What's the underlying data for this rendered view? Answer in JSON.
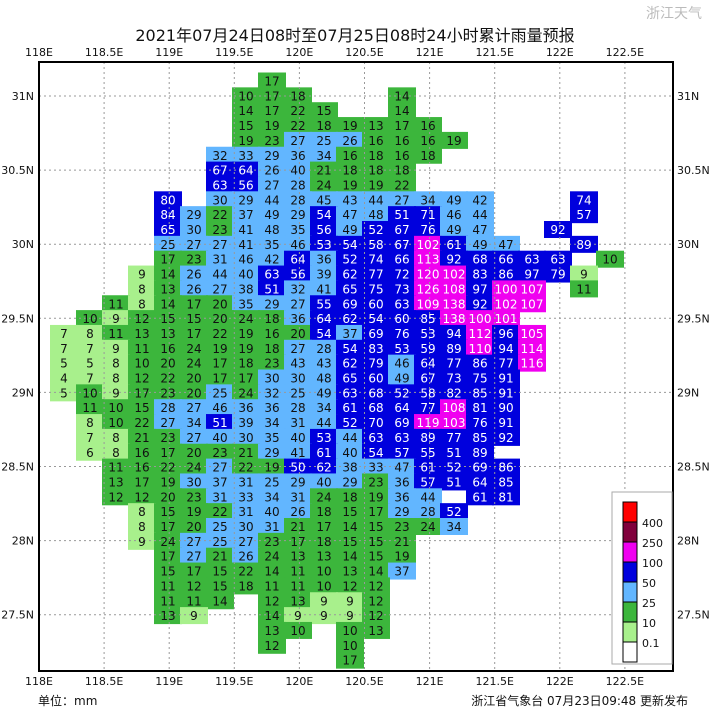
{
  "title": "2021年07月24日08时至07月25日08时24小时累计雨量预报",
  "lon_labels": [
    "118E",
    "118.5E",
    "119E",
    "119.5E",
    "120E",
    "120.5E",
    "121E",
    "121.5E",
    "122E",
    "122.5E"
  ],
  "lat_labels": [
    "31N",
    "30.5N",
    "30N",
    "29.5N",
    "29N",
    "28.5N",
    "28N",
    "27.5N"
  ],
  "unit_label": "单位：mm",
  "issuer": "浙江省气象台 07月23日09:48 更新发布",
  "watermark": "浙江天气",
  "legend": {
    "labels": [
      "400",
      "250",
      "100",
      "50",
      "25",
      "10",
      "0.1"
    ],
    "colors": [
      "#ff0000",
      "#80003c",
      "#f000f0",
      "#0000dd",
      "#62b6ff",
      "#3cb63c",
      "#a8f08c",
      "#ffffff"
    ]
  },
  "grid_rows": [
    [
      null,
      null,
      null,
      null,
      null,
      null,
      null,
      null,
      17
    ],
    [
      null,
      null,
      null,
      null,
      null,
      null,
      null,
      10,
      17,
      18,
      null,
      null,
      null,
      14
    ],
    [
      null,
      null,
      null,
      null,
      null,
      null,
      null,
      14,
      17,
      22,
      15,
      null,
      null,
      14
    ],
    [
      null,
      null,
      null,
      null,
      null,
      null,
      null,
      15,
      19,
      22,
      18,
      19,
      13,
      17,
      16
    ],
    [
      null,
      null,
      null,
      null,
      null,
      null,
      null,
      19,
      23,
      27,
      25,
      26,
      16,
      16,
      16,
      19
    ],
    [
      null,
      null,
      null,
      null,
      null,
      null,
      32,
      33,
      29,
      36,
      34,
      16,
      18,
      16,
      18
    ],
    [
      null,
      null,
      null,
      null,
      null,
      null,
      67,
      64,
      26,
      40,
      21,
      18,
      18,
      18
    ],
    [
      null,
      null,
      null,
      null,
      null,
      null,
      63,
      56,
      27,
      28,
      24,
      19,
      19,
      22
    ],
    [
      null,
      null,
      null,
      null,
      80,
      null,
      30,
      29,
      44,
      28,
      45,
      43,
      44,
      27,
      34,
      49,
      42,
      null,
      null,
      null,
      74
    ],
    [
      null,
      null,
      null,
      null,
      84,
      29,
      22,
      37,
      49,
      29,
      54,
      47,
      48,
      51,
      71,
      46,
      44,
      null,
      null,
      null,
      57
    ],
    [
      null,
      null,
      null,
      null,
      65,
      30,
      23,
      41,
      48,
      35,
      56,
      49,
      52,
      67,
      76,
      49,
      47,
      null,
      null,
      92
    ],
    [
      null,
      null,
      null,
      null,
      25,
      27,
      27,
      41,
      35,
      46,
      53,
      54,
      58,
      67,
      102,
      61,
      49,
      47,
      null,
      null,
      89
    ],
    [
      null,
      null,
      null,
      null,
      17,
      23,
      31,
      46,
      42,
      64,
      36,
      52,
      74,
      66,
      113,
      92,
      68,
      66,
      63,
      63,
      null,
      10
    ],
    [
      null,
      null,
      null,
      9,
      14,
      26,
      44,
      40,
      63,
      56,
      39,
      62,
      77,
      72,
      120,
      102,
      83,
      86,
      97,
      79,
      9
    ],
    [
      null,
      null,
      null,
      8,
      13,
      26,
      27,
      38,
      51,
      32,
      41,
      65,
      75,
      73,
      126,
      108,
      97,
      100,
      107,
      null,
      11
    ],
    [
      null,
      null,
      11,
      8,
      14,
      17,
      20,
      35,
      29,
      27,
      55,
      69,
      60,
      63,
      109,
      138,
      92,
      102,
      107
    ],
    [
      null,
      10,
      9,
      12,
      15,
      15,
      20,
      24,
      18,
      36,
      64,
      62,
      54,
      60,
      85,
      138,
      100,
      101
    ],
    [
      7,
      8,
      11,
      13,
      13,
      17,
      22,
      19,
      16,
      20,
      54,
      37,
      69,
      76,
      53,
      94,
      112,
      96,
      105
    ],
    [
      7,
      7,
      9,
      11,
      16,
      24,
      19,
      19,
      18,
      27,
      28,
      54,
      83,
      53,
      59,
      89,
      110,
      94,
      114
    ],
    [
      5,
      5,
      8,
      10,
      20,
      24,
      17,
      18,
      23,
      43,
      43,
      62,
      79,
      46,
      64,
      77,
      86,
      77,
      116
    ],
    [
      4,
      7,
      8,
      12,
      22,
      20,
      17,
      17,
      30,
      30,
      48,
      65,
      60,
      49,
      67,
      73,
      75,
      91
    ],
    [
      5,
      10,
      9,
      17,
      23,
      20,
      25,
      24,
      32,
      25,
      49,
      63,
      68,
      52,
      58,
      82,
      85,
      91
    ],
    [
      null,
      11,
      10,
      15,
      28,
      27,
      46,
      36,
      36,
      28,
      34,
      61,
      68,
      64,
      77,
      108,
      81,
      90
    ],
    [
      null,
      8,
      10,
      22,
      27,
      34,
      51,
      39,
      34,
      31,
      44,
      52,
      70,
      69,
      119,
      103,
      76,
      91
    ],
    [
      null,
      7,
      8,
      21,
      23,
      27,
      40,
      30,
      35,
      40,
      53,
      44,
      63,
      63,
      89,
      77,
      85,
      92
    ],
    [
      null,
      6,
      8,
      16,
      17,
      20,
      23,
      21,
      29,
      41,
      61,
      40,
      54,
      57,
      55,
      51,
      89
    ],
    [
      null,
      null,
      11,
      16,
      22,
      24,
      27,
      22,
      19,
      50,
      62,
      38,
      33,
      47,
      61,
      52,
      69,
      86
    ],
    [
      null,
      null,
      13,
      17,
      19,
      30,
      37,
      31,
      25,
      29,
      40,
      29,
      23,
      36,
      57,
      51,
      64,
      85
    ],
    [
      null,
      null,
      12,
      12,
      20,
      23,
      31,
      33,
      34,
      31,
      24,
      18,
      19,
      36,
      44,
      null,
      61,
      81
    ],
    [
      null,
      null,
      null,
      8,
      15,
      19,
      22,
      31,
      40,
      26,
      18,
      15,
      17,
      29,
      28,
      52
    ],
    [
      null,
      null,
      null,
      8,
      17,
      20,
      25,
      30,
      31,
      21,
      17,
      14,
      15,
      23,
      24,
      34
    ],
    [
      null,
      null,
      null,
      9,
      24,
      27,
      25,
      27,
      23,
      17,
      18,
      15,
      15,
      21
    ],
    [
      null,
      null,
      null,
      null,
      17,
      27,
      21,
      26,
      24,
      13,
      13,
      14,
      15,
      19
    ],
    [
      null,
      null,
      null,
      null,
      15,
      17,
      15,
      22,
      14,
      11,
      10,
      13,
      14,
      37
    ],
    [
      null,
      null,
      null,
      null,
      11,
      12,
      15,
      18,
      11,
      11,
      10,
      12,
      12
    ],
    [
      null,
      null,
      null,
      null,
      11,
      11,
      14,
      null,
      12,
      13,
      9,
      9,
      12
    ],
    [
      null,
      null,
      null,
      null,
      13,
      9,
      null,
      null,
      14,
      9,
      9,
      9,
      12
    ],
    [
      null,
      null,
      null,
      null,
      null,
      null,
      null,
      null,
      13,
      10,
      null,
      10,
      13
    ],
    [
      null,
      null,
      null,
      null,
      null,
      null,
      null,
      null,
      12,
      null,
      null,
      10
    ],
    [
      null,
      null,
      null,
      null,
      null,
      null,
      null,
      null,
      null,
      null,
      null,
      17
    ]
  ]
}
